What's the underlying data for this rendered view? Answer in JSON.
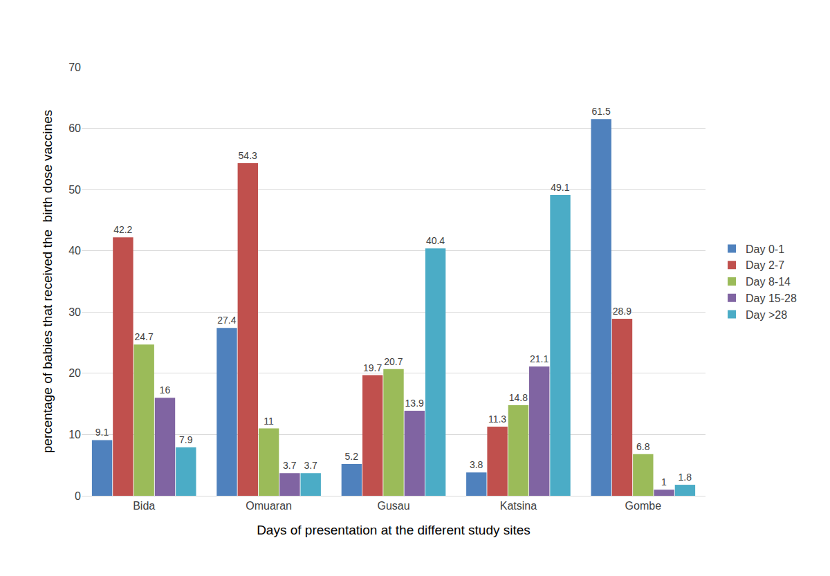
{
  "chart_data": {
    "type": "bar",
    "x_label": "Days of presentation at the different study sites",
    "y_label": "percentage of babies that received the  birth dose vaccines",
    "categories": [
      "Bida",
      "Omuaran",
      "Gusau",
      "Katsina",
      "Gombe"
    ],
    "series": [
      {
        "name": "Day 0-1",
        "color": "#4f81bd",
        "values": [
          9.1,
          27.4,
          5.2,
          3.8,
          61.5
        ]
      },
      {
        "name": "Day 2-7",
        "color": "#c0504d",
        "values": [
          42.2,
          54.3,
          19.7,
          11.3,
          28.9
        ]
      },
      {
        "name": "Day 8-14",
        "color": "#9bbb59",
        "values": [
          24.7,
          11,
          20.7,
          14.8,
          6.8
        ]
      },
      {
        "name": "Day 15-28",
        "color": "#8064a2",
        "values": [
          16,
          3.7,
          13.9,
          21.1,
          1
        ]
      },
      {
        "name": "Day >28",
        "color": "#4bacc6",
        "values": [
          7.9,
          3.7,
          40.4,
          49.1,
          1.8
        ]
      }
    ],
    "ylim": [
      0,
      70
    ],
    "yticks": [
      0,
      10,
      20,
      30,
      40,
      50,
      60,
      70
    ],
    "grid": true,
    "legend": "right",
    "data_labels": true
  }
}
